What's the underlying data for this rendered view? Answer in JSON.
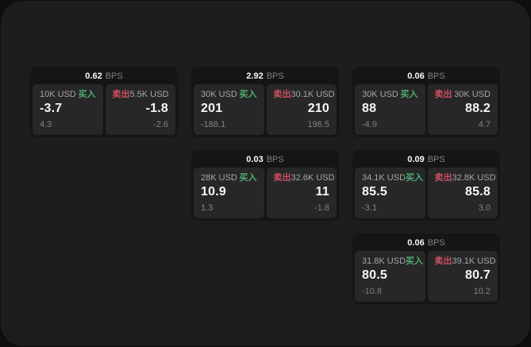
{
  "labels": {
    "bps_unit": "BPS",
    "buy": "买入",
    "sell": "卖出"
  },
  "colors": {
    "buy_green": "#4fae74",
    "sell_red": "#cd4f63",
    "panel_bg": "#1d1d1d",
    "card_bg": "#151515",
    "tile_bg": "#272727"
  },
  "cards": [
    {
      "bps": "0.62",
      "row": 1,
      "col": 1,
      "buy": {
        "amount": "10K USD",
        "value": "-3.7",
        "delta": "4.3"
      },
      "sell": {
        "amount": "5.5K USD",
        "value": "-1.8",
        "delta": "-2.6"
      }
    },
    {
      "bps": "2.92",
      "row": 1,
      "col": 2,
      "buy": {
        "amount": "30K USD",
        "value": "201",
        "delta": "-188.1"
      },
      "sell": {
        "amount": "30.1K USD",
        "value": "210",
        "delta": "196.5"
      }
    },
    {
      "bps": "0.06",
      "row": 1,
      "col": 3,
      "buy": {
        "amount": "30K USD",
        "value": "88",
        "delta": "-4.9"
      },
      "sell": {
        "amount": "30K USD",
        "value": "88.2",
        "delta": "4.7"
      }
    },
    {
      "bps": "0.03",
      "row": 2,
      "col": 2,
      "buy": {
        "amount": "28K USD",
        "value": "10.9",
        "delta": "1.3"
      },
      "sell": {
        "amount": "32.6K USD",
        "value": "11",
        "delta": "-1.8"
      }
    },
    {
      "bps": "0.09",
      "row": 2,
      "col": 3,
      "buy": {
        "amount": "34.1K USD",
        "value": "85.5",
        "delta": "-3.1"
      },
      "sell": {
        "amount": "32.8K USD",
        "value": "85.8",
        "delta": "3.0"
      }
    },
    {
      "bps": "0.06",
      "row": 3,
      "col": 3,
      "buy": {
        "amount": "31.8K USD",
        "value": "80.5",
        "delta": "-10.8"
      },
      "sell": {
        "amount": "39.1K USD",
        "value": "80.7",
        "delta": "10.2"
      }
    }
  ]
}
